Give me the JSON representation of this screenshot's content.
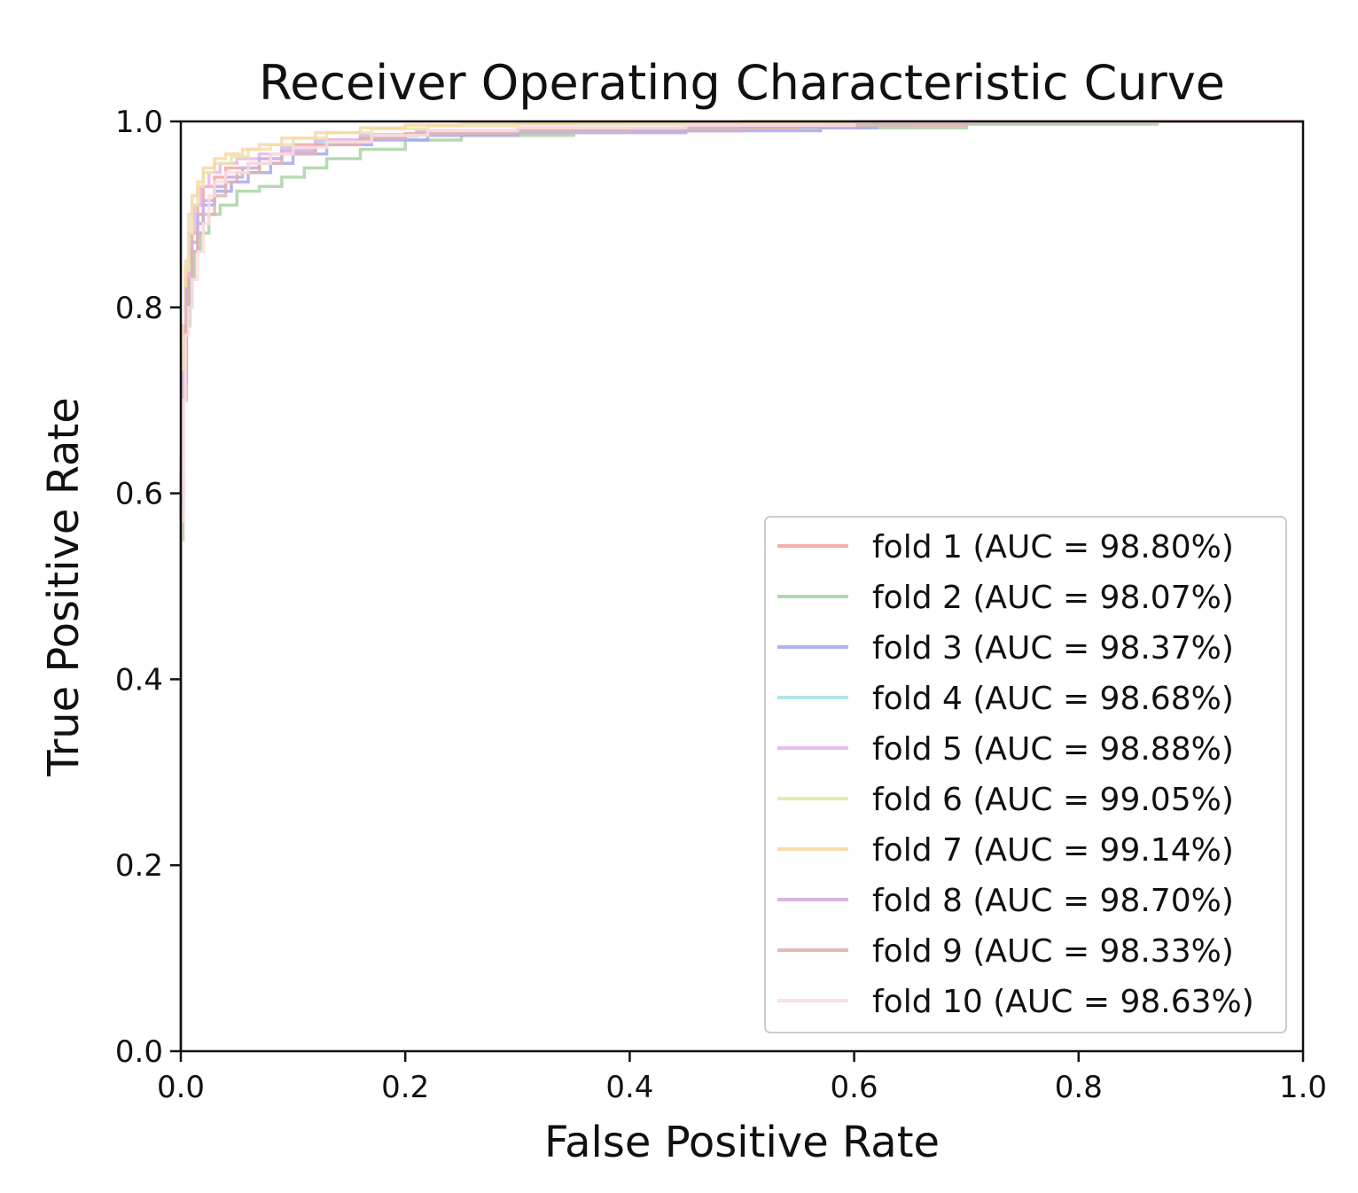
{
  "chart_data": {
    "type": "line",
    "title": "Receiver Operating Characteristic Curve",
    "xlabel": "False Positive Rate",
    "ylabel": "True Positive Rate",
    "xlim": [
      0.0,
      1.0
    ],
    "ylim": [
      0.0,
      1.0
    ],
    "xticks": [
      "0.0",
      "0.2",
      "0.4",
      "0.6",
      "0.8",
      "1.0"
    ],
    "yticks": [
      "0.0",
      "0.2",
      "0.4",
      "0.6",
      "0.8",
      "1.0"
    ],
    "grid": false,
    "legend_position": "lower right",
    "series": [
      {
        "name": "fold 1 (AUC = 98.80%)",
        "color": "#f4a6a0",
        "x": [
          0,
          0,
          0.002,
          0.004,
          0.007,
          0.01,
          0.015,
          0.02,
          0.03,
          0.04,
          0.06,
          0.08,
          0.1,
          0.13,
          0.17,
          0.22,
          0.3,
          0.45,
          0.6,
          0.8,
          1.0
        ],
        "y": [
          0,
          0.58,
          0.72,
          0.8,
          0.85,
          0.88,
          0.91,
          0.93,
          0.94,
          0.95,
          0.955,
          0.965,
          0.975,
          0.98,
          0.985,
          0.99,
          0.993,
          0.995,
          0.998,
          1.0,
          1.0
        ]
      },
      {
        "name": "fold 2 (AUC = 98.07%)",
        "color": "#a9d4a4",
        "x": [
          0,
          0,
          0.002,
          0.005,
          0.008,
          0.012,
          0.018,
          0.025,
          0.035,
          0.05,
          0.07,
          0.09,
          0.11,
          0.13,
          0.16,
          0.2,
          0.25,
          0.35,
          0.5,
          0.7,
          0.87,
          1.0
        ],
        "y": [
          0,
          0.55,
          0.7,
          0.78,
          0.83,
          0.86,
          0.88,
          0.9,
          0.91,
          0.925,
          0.93,
          0.94,
          0.95,
          0.96,
          0.97,
          0.98,
          0.985,
          0.99,
          0.993,
          0.997,
          1.0,
          1.0
        ]
      },
      {
        "name": "fold 3 (AUC = 98.37%)",
        "color": "#a8a8f0",
        "x": [
          0,
          0,
          0.002,
          0.005,
          0.01,
          0.015,
          0.02,
          0.03,
          0.045,
          0.06,
          0.08,
          0.1,
          0.13,
          0.17,
          0.22,
          0.3,
          0.45,
          0.57,
          0.62,
          1.0
        ],
        "y": [
          0,
          0.6,
          0.72,
          0.8,
          0.86,
          0.89,
          0.91,
          0.925,
          0.935,
          0.945,
          0.955,
          0.965,
          0.975,
          0.98,
          0.985,
          0.988,
          0.99,
          0.993,
          1.0,
          1.0
        ]
      },
      {
        "name": "fold 4 (AUC = 98.68%)",
        "color": "#a8e2e6",
        "x": [
          0,
          0,
          0.002,
          0.005,
          0.01,
          0.015,
          0.02,
          0.03,
          0.04,
          0.055,
          0.07,
          0.09,
          0.12,
          0.16,
          0.21,
          0.28,
          0.4,
          0.55,
          0.65,
          1.0
        ],
        "y": [
          0,
          0.62,
          0.74,
          0.82,
          0.87,
          0.9,
          0.915,
          0.93,
          0.94,
          0.95,
          0.96,
          0.97,
          0.978,
          0.984,
          0.988,
          0.99,
          0.993,
          0.996,
          1.0,
          1.0
        ]
      },
      {
        "name": "fold 5 (AUC = 98.88%)",
        "color": "#eab4ea",
        "x": [
          0,
          0,
          0.002,
          0.004,
          0.008,
          0.012,
          0.018,
          0.025,
          0.035,
          0.05,
          0.07,
          0.09,
          0.12,
          0.16,
          0.21,
          0.3,
          0.45,
          0.6,
          1.0
        ],
        "y": [
          0,
          0.6,
          0.75,
          0.83,
          0.88,
          0.91,
          0.93,
          0.945,
          0.955,
          0.96,
          0.965,
          0.972,
          0.98,
          0.986,
          0.99,
          0.993,
          0.996,
          1.0,
          1.0
        ]
      },
      {
        "name": "fold 6 (AUC = 99.05%)",
        "color": "#e8e6ad",
        "x": [
          0,
          0,
          0.002,
          0.004,
          0.007,
          0.01,
          0.015,
          0.02,
          0.03,
          0.045,
          0.06,
          0.08,
          0.1,
          0.13,
          0.17,
          0.22,
          0.3,
          0.45,
          0.6,
          1.0
        ],
        "y": [
          0,
          0.62,
          0.76,
          0.84,
          0.88,
          0.91,
          0.93,
          0.945,
          0.955,
          0.962,
          0.97,
          0.975,
          0.982,
          0.988,
          0.992,
          0.995,
          0.997,
          0.999,
          1.0,
          1.0
        ]
      },
      {
        "name": "fold 7 (AUC = 99.14%)",
        "color": "#f8d8a6",
        "x": [
          0,
          0,
          0.002,
          0.004,
          0.007,
          0.01,
          0.015,
          0.02,
          0.03,
          0.04,
          0.055,
          0.07,
          0.09,
          0.12,
          0.16,
          0.2,
          0.25,
          0.35,
          0.5,
          1.0
        ],
        "y": [
          0,
          0.64,
          0.78,
          0.85,
          0.9,
          0.92,
          0.935,
          0.95,
          0.96,
          0.965,
          0.97,
          0.975,
          0.982,
          0.988,
          0.993,
          0.996,
          0.998,
          0.999,
          1.0,
          1.0
        ]
      },
      {
        "name": "fold 8 (AUC = 98.70%)",
        "color": "#d4aede",
        "x": [
          0,
          0,
          0.002,
          0.005,
          0.01,
          0.015,
          0.02,
          0.03,
          0.04,
          0.055,
          0.07,
          0.09,
          0.12,
          0.16,
          0.2,
          0.25,
          0.35,
          0.5,
          0.6,
          1.0
        ],
        "y": [
          0,
          0.6,
          0.73,
          0.82,
          0.87,
          0.9,
          0.915,
          0.93,
          0.94,
          0.95,
          0.96,
          0.968,
          0.975,
          0.982,
          0.986,
          0.988,
          0.99,
          0.994,
          1.0,
          1.0
        ]
      },
      {
        "name": "fold 9 (AUC = 98.33%)",
        "color": "#dcb4b0",
        "x": [
          0,
          0,
          0.002,
          0.004,
          0.007,
          0.01,
          0.015,
          0.02,
          0.03,
          0.04,
          0.05,
          0.07,
          0.09,
          0.12,
          0.16,
          0.2,
          0.3,
          0.4,
          0.55,
          0.7,
          1.0
        ],
        "y": [
          0,
          0.58,
          0.7,
          0.78,
          0.83,
          0.86,
          0.88,
          0.9,
          0.92,
          0.935,
          0.945,
          0.955,
          0.965,
          0.975,
          0.982,
          0.987,
          0.99,
          0.993,
          0.996,
          1.0,
          1.0
        ]
      },
      {
        "name": "fold 10 (AUC = 98.63%)",
        "color": "#fbdde2",
        "x": [
          0,
          0,
          0.002,
          0.004,
          0.007,
          0.01,
          0.015,
          0.02,
          0.025,
          0.03,
          0.04,
          0.06,
          0.08,
          0.1,
          0.13,
          0.17,
          0.22,
          0.3,
          0.45,
          0.6,
          1.0
        ],
        "y": [
          0,
          0.57,
          0.7,
          0.77,
          0.8,
          0.83,
          0.86,
          0.89,
          0.92,
          0.935,
          0.945,
          0.955,
          0.965,
          0.972,
          0.978,
          0.985,
          0.99,
          0.993,
          0.996,
          1.0,
          1.0
        ]
      }
    ]
  }
}
